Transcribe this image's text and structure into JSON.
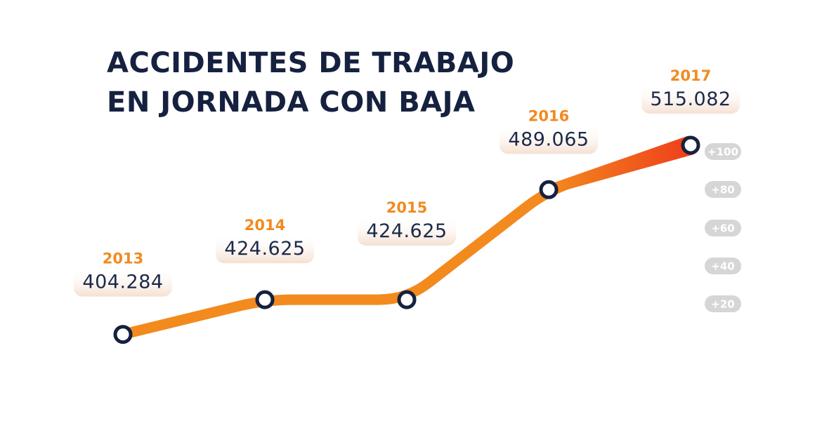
{
  "title": {
    "line1": "ACCIDENTES DE TRABAJO",
    "line2": "EN JORNADA CON BAJA"
  },
  "colors": {
    "accent": "#f28a1e",
    "accent_end": "#ef3e1c",
    "title": "#15213f",
    "value_text": "#1c2a4a",
    "marker_ring": "#15213f",
    "tick_pill": "#d6d6d6",
    "grid": "#ececec"
  },
  "chart_data": {
    "type": "line",
    "title": "ACCIDENTES DE TRABAJO EN JORNADA CON BAJA",
    "categories": [
      "2013",
      "2014",
      "2015",
      "2016",
      "2017"
    ],
    "x": [
      2013,
      2014,
      2015,
      2016,
      2017
    ],
    "series": [
      {
        "values": [
          404284,
          424625,
          424625,
          489065,
          515082
        ],
        "value_labels": [
          "404.284",
          "424.625",
          "424.625",
          "489.065",
          "515.082"
        ]
      }
    ],
    "y_axis_side": "right",
    "y_tick_labels": [
      "+20",
      "+40",
      "+60",
      "+80",
      "+100"
    ],
    "ylim": [
      400000,
      520000
    ],
    "grid": true,
    "legend": "none"
  }
}
